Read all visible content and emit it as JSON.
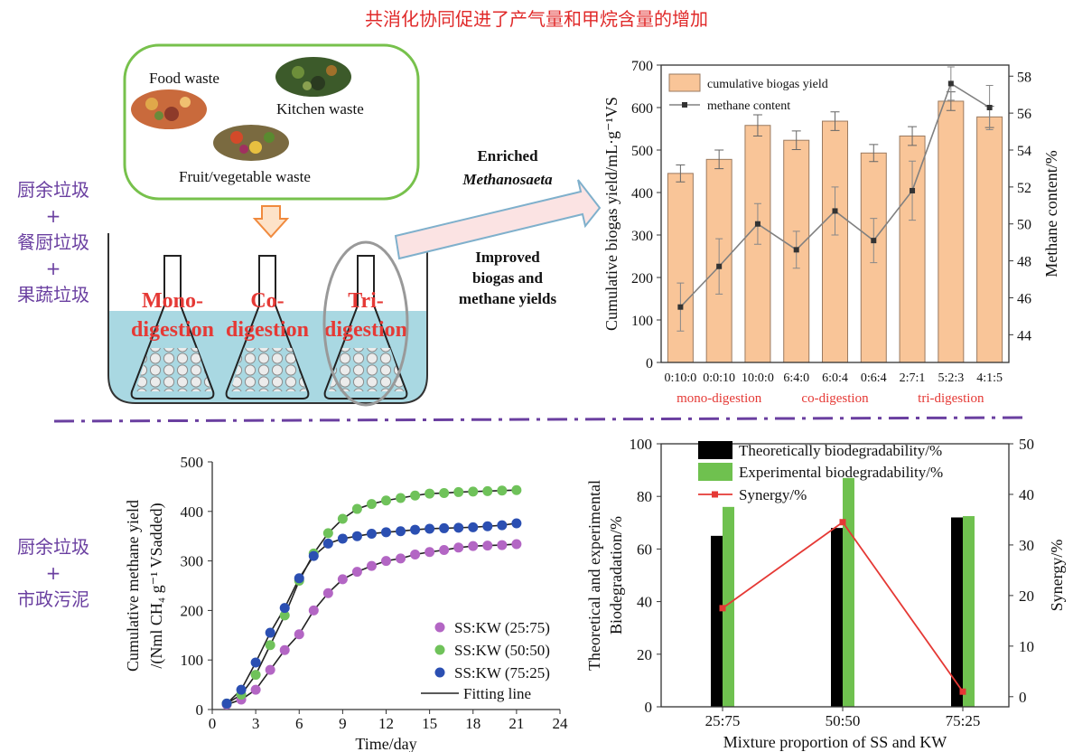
{
  "title": "共消化协同促进了产气量和甲烷含量的增加",
  "left_labels": {
    "top": [
      "厨余垃圾",
      "+",
      "餐厨垃圾",
      "+",
      "果蔬垃圾"
    ],
    "bottom": [
      "厨余垃圾",
      "+",
      "市政污泥"
    ]
  },
  "schematic": {
    "waste_labels": [
      "Food waste",
      "Kitchen waste",
      "Fruit/vegetable waste"
    ],
    "flask_labels": [
      {
        "line1": "Mono-",
        "line2": "digestion"
      },
      {
        "line1": "Co-",
        "line2": "digestion"
      },
      {
        "line1": "Tri-",
        "line2": "digestion"
      }
    ],
    "annotation_1": {
      "line1": "Enriched",
      "line2": "Methanosaeta"
    },
    "annotation_2": {
      "line1": "Improved",
      "line2": "biogas and",
      "line3": "methane yields"
    }
  },
  "chart_data": [
    {
      "type": "bar",
      "categories": [
        "0:10:0",
        "0:0:10",
        "10:0:0",
        "6:4:0",
        "6:0:4",
        "0:6:4",
        "2:7:1",
        "5:2:3",
        "4:1:5"
      ],
      "series": [
        {
          "name": "cumulative biogas yield",
          "type": "bar",
          "axis": "left",
          "values": [
            445,
            478,
            558,
            523,
            568,
            493,
            533,
            615,
            578
          ],
          "errors": [
            20,
            22,
            25,
            22,
            22,
            20,
            22,
            22,
            25
          ]
        },
        {
          "name": "methane content",
          "type": "line",
          "axis": "right",
          "values": [
            45.5,
            47.7,
            50.0,
            48.6,
            50.7,
            49.1,
            51.8,
            57.6,
            56.3
          ],
          "errors": [
            1.3,
            1.5,
            1.1,
            1.0,
            1.3,
            1.2,
            1.6,
            0.9,
            1.2
          ]
        }
      ],
      "ylabel": "Cumulative biogas yield/mL·g⁻¹VS",
      "y2label": "Methane content/%",
      "ylim": [
        0,
        700
      ],
      "yticks": [
        0,
        100,
        200,
        300,
        400,
        500,
        600,
        700
      ],
      "y2lim": [
        42.5,
        58.6
      ],
      "y2ticks": [
        44,
        46,
        48,
        50,
        52,
        54,
        56,
        58
      ],
      "group_labels": [
        "mono-digestion",
        "co-digestion",
        "tri-digestion"
      ],
      "legend_position": "top-left",
      "colors": {
        "bar": "#f9c598",
        "bar_edge": "#9a7a60",
        "line": "#808080",
        "group": "#e53935"
      }
    },
    {
      "type": "scatter",
      "xlabel": "Time/day",
      "ylabel_line1": "Cumulative methane yield",
      "ylabel_line2": "/(Nml CH₄ g⁻¹ VSadded)",
      "xlim": [
        0,
        24
      ],
      "xticks": [
        0,
        3,
        6,
        9,
        12,
        15,
        18,
        21,
        24
      ],
      "ylim": [
        0,
        500
      ],
      "yticks": [
        0,
        100,
        200,
        300,
        400,
        500
      ],
      "series": [
        {
          "name": "SS:KW (25:75)",
          "color": "#b366c4",
          "x": [
            1,
            2,
            3,
            4,
            5,
            6,
            7,
            8,
            9,
            10,
            11,
            12,
            13,
            14,
            15,
            16,
            17,
            18,
            19,
            20,
            21
          ],
          "y": [
            10,
            20,
            40,
            80,
            120,
            152,
            200,
            235,
            263,
            278,
            290,
            300,
            305,
            313,
            318,
            322,
            327,
            330,
            331,
            332,
            334
          ]
        },
        {
          "name": "SS:KW (50:50)",
          "color": "#6fc25a",
          "x": [
            1,
            2,
            3,
            4,
            5,
            6,
            7,
            8,
            9,
            10,
            11,
            12,
            13,
            14,
            15,
            16,
            17,
            18,
            19,
            20,
            21
          ],
          "y": [
            12,
            30,
            70,
            130,
            190,
            260,
            315,
            356,
            385,
            405,
            415,
            422,
            427,
            432,
            436,
            437,
            439,
            440,
            441,
            442,
            443
          ]
        },
        {
          "name": "SS:KW (75:25)",
          "color": "#2b4fb2",
          "x": [
            1,
            2,
            3,
            4,
            5,
            6,
            7,
            8,
            9,
            10,
            11,
            12,
            13,
            14,
            15,
            16,
            17,
            18,
            19,
            20,
            21
          ],
          "y": [
            12,
            40,
            95,
            155,
            205,
            265,
            310,
            335,
            345,
            350,
            355,
            358,
            360,
            363,
            365,
            366,
            367,
            368,
            370,
            372,
            376
          ]
        }
      ],
      "fit_label": "Fitting line",
      "fit_color": "#222222",
      "legend_position": "bottom-right"
    },
    {
      "type": "bar",
      "categories": [
        "25:75",
        "50:50",
        "75:25"
      ],
      "series": [
        {
          "name": "Theoretically biodegradability/%",
          "color": "#000000",
          "axis": "left",
          "values": [
            65,
            68,
            72
          ]
        },
        {
          "name": "Experimental biodegradability/%",
          "color": "#6fc14f",
          "axis": "left",
          "values": [
            76,
            87,
            72.5
          ]
        },
        {
          "name": "Synergy/%",
          "type": "line",
          "color": "#e53935",
          "axis": "right",
          "values": [
            17.5,
            34.5,
            1
          ]
        }
      ],
      "xlabel": "Mixture proportion of SS and KW",
      "ylabel_line1": "Theoretical and experimental",
      "ylabel_line2": "Biodegradation/%",
      "y2label": "Synergy/%",
      "ylim": [
        0,
        100
      ],
      "yticks": [
        0,
        20,
        40,
        60,
        80,
        100
      ],
      "y2lim": [
        -2,
        50
      ],
      "y2ticks": [
        0,
        10,
        20,
        30,
        40,
        50
      ],
      "legend_position": "top-left"
    }
  ]
}
